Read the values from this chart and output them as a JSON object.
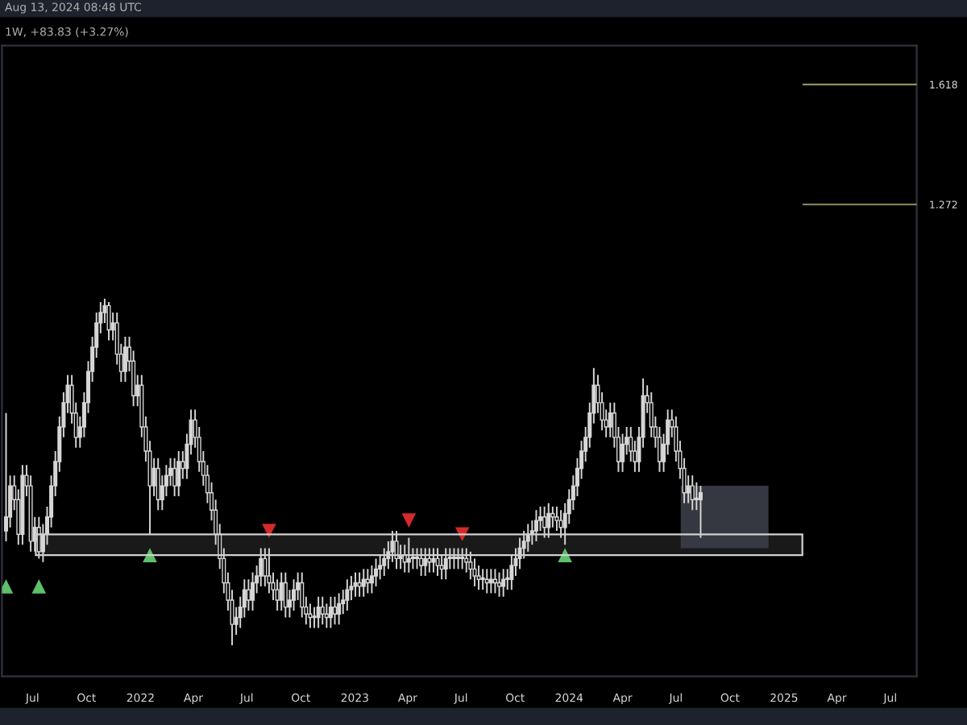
{
  "chart_data": {
    "type": "candlestick",
    "color": "#d6d6d6",
    "ylim": [
      -0.09,
      1.73
    ],
    "yticks": [
      1.272,
      1.618
    ],
    "x": [
      "2021-05-17",
      "2021-05-24",
      "2021-05-31",
      "2021-06-07",
      "2021-06-14",
      "2021-06-21",
      "2021-06-28",
      "2021-07-05",
      "2021-07-12",
      "2021-07-19",
      "2021-07-26",
      "2021-08-02",
      "2021-08-09",
      "2021-08-16",
      "2021-08-23",
      "2021-08-30",
      "2021-09-06",
      "2021-09-13",
      "2021-09-20",
      "2021-09-27",
      "2021-10-04",
      "2021-10-11",
      "2021-10-18",
      "2021-10-25",
      "2021-11-01",
      "2021-11-08",
      "2021-11-15",
      "2021-11-22",
      "2021-11-29",
      "2021-12-06",
      "2021-12-13",
      "2021-12-20",
      "2021-12-27",
      "2022-01-03",
      "2022-01-10",
      "2022-01-17",
      "2022-01-24",
      "2022-01-31",
      "2022-02-07",
      "2022-02-14",
      "2022-02-21",
      "2022-02-28",
      "2022-03-07",
      "2022-03-14",
      "2022-03-21",
      "2022-03-28",
      "2022-04-04",
      "2022-04-11",
      "2022-04-18",
      "2022-04-25",
      "2022-05-02",
      "2022-05-09",
      "2022-05-16",
      "2022-05-23",
      "2022-05-30",
      "2022-06-06",
      "2022-06-13",
      "2022-06-20",
      "2022-06-27",
      "2022-07-04",
      "2022-07-11",
      "2022-07-18",
      "2022-07-25",
      "2022-08-01",
      "2022-08-08",
      "2022-08-15",
      "2022-08-22",
      "2022-08-29",
      "2022-09-05",
      "2022-09-12",
      "2022-09-19",
      "2022-09-26",
      "2022-10-03",
      "2022-10-10",
      "2022-10-17",
      "2022-10-24",
      "2022-10-31",
      "2022-11-07",
      "2022-11-14",
      "2022-11-21",
      "2022-11-28",
      "2022-12-05",
      "2022-12-12",
      "2022-12-19",
      "2022-12-26",
      "2023-01-02",
      "2023-01-09",
      "2023-01-16",
      "2023-01-23",
      "2023-01-30",
      "2023-02-06",
      "2023-02-13",
      "2023-02-20",
      "2023-02-27",
      "2023-03-06",
      "2023-03-13",
      "2023-03-20",
      "2023-03-27",
      "2023-04-03",
      "2023-04-10",
      "2023-04-17",
      "2023-04-24",
      "2023-05-01",
      "2023-05-08",
      "2023-05-15",
      "2023-05-22",
      "2023-05-29",
      "2023-06-05",
      "2023-06-12",
      "2023-06-19",
      "2023-06-26",
      "2023-07-03",
      "2023-07-10",
      "2023-07-17",
      "2023-07-24",
      "2023-07-31",
      "2023-08-07",
      "2023-08-14",
      "2023-08-21",
      "2023-08-28",
      "2023-09-04",
      "2023-09-11",
      "2023-09-18",
      "2023-09-25",
      "2023-10-02",
      "2023-10-09",
      "2023-10-16",
      "2023-10-23",
      "2023-10-30",
      "2023-11-06",
      "2023-11-13",
      "2023-11-20",
      "2023-11-27",
      "2023-12-04",
      "2023-12-11",
      "2023-12-18",
      "2023-12-25",
      "2024-01-01",
      "2024-01-08",
      "2024-01-15",
      "2024-01-22",
      "2024-01-29",
      "2024-02-05",
      "2024-02-12",
      "2024-02-19",
      "2024-02-26",
      "2024-03-04",
      "2024-03-11",
      "2024-03-18",
      "2024-03-25",
      "2024-04-01",
      "2024-04-08",
      "2024-04-15",
      "2024-04-22",
      "2024-04-29",
      "2024-05-06",
      "2024-05-13",
      "2024-05-20",
      "2024-05-27",
      "2024-06-03",
      "2024-06-10",
      "2024-06-17",
      "2024-06-24",
      "2024-07-01",
      "2024-07-08",
      "2024-07-15",
      "2024-07-22",
      "2024-07-29",
      "2024-08-05",
      "2024-08-12"
    ],
    "ohlc": [
      [
        0.33,
        0.67,
        0.3,
        0.37
      ],
      [
        0.37,
        0.49,
        0.34,
        0.46
      ],
      [
        0.46,
        0.49,
        0.39,
        0.42
      ],
      [
        0.42,
        0.45,
        0.29,
        0.32
      ],
      [
        0.32,
        0.52,
        0.29,
        0.49
      ],
      [
        0.49,
        0.52,
        0.43,
        0.46
      ],
      [
        0.46,
        0.49,
        0.27,
        0.3
      ],
      [
        0.3,
        0.37,
        0.27,
        0.34
      ],
      [
        0.34,
        0.37,
        0.25,
        0.27
      ],
      [
        0.27,
        0.35,
        0.24,
        0.32
      ],
      [
        0.32,
        0.4,
        0.29,
        0.37
      ],
      [
        0.37,
        0.49,
        0.34,
        0.46
      ],
      [
        0.46,
        0.56,
        0.43,
        0.53
      ],
      [
        0.53,
        0.66,
        0.5,
        0.63
      ],
      [
        0.63,
        0.73,
        0.6,
        0.7
      ],
      [
        0.7,
        0.78,
        0.67,
        0.75
      ],
      [
        0.75,
        0.78,
        0.64,
        0.67
      ],
      [
        0.67,
        0.7,
        0.57,
        0.6
      ],
      [
        0.6,
        0.66,
        0.57,
        0.63
      ],
      [
        0.63,
        0.73,
        0.6,
        0.7
      ],
      [
        0.7,
        0.82,
        0.67,
        0.79
      ],
      [
        0.79,
        0.89,
        0.76,
        0.86
      ],
      [
        0.86,
        0.96,
        0.83,
        0.93
      ],
      [
        0.93,
        0.99,
        0.9,
        0.96
      ],
      [
        0.96,
        1.0,
        0.93,
        0.98
      ],
      [
        0.98,
        0.99,
        0.88,
        0.91
      ],
      [
        0.91,
        0.96,
        0.88,
        0.93
      ],
      [
        0.93,
        0.96,
        0.81,
        0.84
      ],
      [
        0.84,
        0.87,
        0.76,
        0.79
      ],
      [
        0.79,
        0.89,
        0.76,
        0.86
      ],
      [
        0.86,
        0.89,
        0.79,
        0.82
      ],
      [
        0.82,
        0.85,
        0.69,
        0.72
      ],
      [
        0.72,
        0.78,
        0.69,
        0.75
      ],
      [
        0.75,
        0.78,
        0.6,
        0.63
      ],
      [
        0.63,
        0.66,
        0.53,
        0.56
      ],
      [
        0.56,
        0.59,
        0.32,
        0.46
      ],
      [
        0.46,
        0.54,
        0.43,
        0.51
      ],
      [
        0.51,
        0.54,
        0.39,
        0.42
      ],
      [
        0.42,
        0.49,
        0.39,
        0.46
      ],
      [
        0.46,
        0.52,
        0.43,
        0.49
      ],
      [
        0.49,
        0.54,
        0.46,
        0.51
      ],
      [
        0.51,
        0.54,
        0.43,
        0.46
      ],
      [
        0.46,
        0.56,
        0.43,
        0.53
      ],
      [
        0.53,
        0.56,
        0.48,
        0.51
      ],
      [
        0.51,
        0.61,
        0.48,
        0.58
      ],
      [
        0.58,
        0.68,
        0.55,
        0.65
      ],
      [
        0.65,
        0.68,
        0.57,
        0.6
      ],
      [
        0.6,
        0.63,
        0.5,
        0.53
      ],
      [
        0.53,
        0.56,
        0.46,
        0.49
      ],
      [
        0.49,
        0.52,
        0.41,
        0.44
      ],
      [
        0.44,
        0.47,
        0.36,
        0.39
      ],
      [
        0.39,
        0.42,
        0.29,
        0.32
      ],
      [
        0.32,
        0.35,
        0.22,
        0.25
      ],
      [
        0.25,
        0.28,
        0.15,
        0.18
      ],
      [
        0.18,
        0.21,
        0.1,
        0.13
      ],
      [
        0.13,
        0.16,
        0.0,
        0.06
      ],
      [
        0.06,
        0.11,
        0.03,
        0.08
      ],
      [
        0.08,
        0.14,
        0.05,
        0.11
      ],
      [
        0.11,
        0.19,
        0.08,
        0.16
      ],
      [
        0.16,
        0.19,
        0.1,
        0.13
      ],
      [
        0.13,
        0.21,
        0.1,
        0.18
      ],
      [
        0.18,
        0.23,
        0.15,
        0.2
      ],
      [
        0.2,
        0.28,
        0.17,
        0.25
      ],
      [
        0.25,
        0.28,
        0.17,
        0.2
      ],
      [
        0.2,
        0.28,
        0.15,
        0.18
      ],
      [
        0.18,
        0.21,
        0.13,
        0.16
      ],
      [
        0.16,
        0.19,
        0.1,
        0.13
      ],
      [
        0.13,
        0.21,
        0.1,
        0.18
      ],
      [
        0.18,
        0.21,
        0.08,
        0.11
      ],
      [
        0.11,
        0.16,
        0.08,
        0.13
      ],
      [
        0.13,
        0.19,
        0.1,
        0.16
      ],
      [
        0.16,
        0.21,
        0.13,
        0.18
      ],
      [
        0.18,
        0.21,
        0.08,
        0.11
      ],
      [
        0.11,
        0.14,
        0.06,
        0.09
      ],
      [
        0.09,
        0.12,
        0.05,
        0.08
      ],
      [
        0.08,
        0.11,
        0.05,
        0.08
      ],
      [
        0.08,
        0.14,
        0.05,
        0.11
      ],
      [
        0.11,
        0.14,
        0.06,
        0.09
      ],
      [
        0.09,
        0.12,
        0.05,
        0.08
      ],
      [
        0.08,
        0.14,
        0.05,
        0.11
      ],
      [
        0.11,
        0.14,
        0.06,
        0.09
      ],
      [
        0.09,
        0.15,
        0.06,
        0.12
      ],
      [
        0.12,
        0.16,
        0.09,
        0.13
      ],
      [
        0.13,
        0.19,
        0.1,
        0.16
      ],
      [
        0.16,
        0.2,
        0.13,
        0.17
      ],
      [
        0.17,
        0.21,
        0.14,
        0.18
      ],
      [
        0.18,
        0.21,
        0.14,
        0.17
      ],
      [
        0.17,
        0.22,
        0.14,
        0.19
      ],
      [
        0.19,
        0.22,
        0.15,
        0.18
      ],
      [
        0.18,
        0.23,
        0.15,
        0.2
      ],
      [
        0.2,
        0.25,
        0.17,
        0.22
      ],
      [
        0.22,
        0.26,
        0.19,
        0.23
      ],
      [
        0.23,
        0.28,
        0.2,
        0.25
      ],
      [
        0.25,
        0.3,
        0.22,
        0.27
      ],
      [
        0.27,
        0.33,
        0.24,
        0.3
      ],
      [
        0.3,
        0.33,
        0.22,
        0.25
      ],
      [
        0.25,
        0.29,
        0.22,
        0.26
      ],
      [
        0.26,
        0.29,
        0.21,
        0.24
      ],
      [
        0.24,
        0.31,
        0.21,
        0.25
      ],
      [
        0.25,
        0.28,
        0.22,
        0.25
      ],
      [
        0.25,
        0.28,
        0.22,
        0.25
      ],
      [
        0.25,
        0.28,
        0.2,
        0.23
      ],
      [
        0.23,
        0.28,
        0.2,
        0.25
      ],
      [
        0.25,
        0.28,
        0.21,
        0.24
      ],
      [
        0.24,
        0.28,
        0.21,
        0.25
      ],
      [
        0.25,
        0.28,
        0.2,
        0.23
      ],
      [
        0.23,
        0.26,
        0.19,
        0.22
      ],
      [
        0.22,
        0.28,
        0.19,
        0.25
      ],
      [
        0.25,
        0.28,
        0.22,
        0.25
      ],
      [
        0.25,
        0.28,
        0.22,
        0.25
      ],
      [
        0.25,
        0.28,
        0.22,
        0.25
      ],
      [
        0.25,
        0.28,
        0.22,
        0.25
      ],
      [
        0.25,
        0.28,
        0.21,
        0.24
      ],
      [
        0.24,
        0.27,
        0.19,
        0.22
      ],
      [
        0.22,
        0.25,
        0.17,
        0.2
      ],
      [
        0.2,
        0.23,
        0.16,
        0.19
      ],
      [
        0.19,
        0.22,
        0.16,
        0.19
      ],
      [
        0.19,
        0.22,
        0.15,
        0.18
      ],
      [
        0.18,
        0.22,
        0.15,
        0.19
      ],
      [
        0.19,
        0.22,
        0.15,
        0.18
      ],
      [
        0.18,
        0.21,
        0.14,
        0.17
      ],
      [
        0.17,
        0.22,
        0.14,
        0.19
      ],
      [
        0.19,
        0.22,
        0.16,
        0.19
      ],
      [
        0.19,
        0.26,
        0.16,
        0.23
      ],
      [
        0.23,
        0.28,
        0.2,
        0.25
      ],
      [
        0.25,
        0.31,
        0.22,
        0.28
      ],
      [
        0.28,
        0.33,
        0.25,
        0.3
      ],
      [
        0.3,
        0.35,
        0.27,
        0.32
      ],
      [
        0.32,
        0.36,
        0.29,
        0.33
      ],
      [
        0.33,
        0.39,
        0.3,
        0.36
      ],
      [
        0.36,
        0.4,
        0.33,
        0.37
      ],
      [
        0.37,
        0.4,
        0.31,
        0.34
      ],
      [
        0.34,
        0.41,
        0.31,
        0.38
      ],
      [
        0.38,
        0.4,
        0.34,
        0.37
      ],
      [
        0.37,
        0.4,
        0.33,
        0.36
      ],
      [
        0.36,
        0.39,
        0.31,
        0.34
      ],
      [
        0.34,
        0.41,
        0.29,
        0.38
      ],
      [
        0.38,
        0.45,
        0.35,
        0.42
      ],
      [
        0.42,
        0.49,
        0.39,
        0.46
      ],
      [
        0.46,
        0.54,
        0.43,
        0.51
      ],
      [
        0.51,
        0.59,
        0.48,
        0.56
      ],
      [
        0.56,
        0.63,
        0.53,
        0.6
      ],
      [
        0.6,
        0.7,
        0.57,
        0.67
      ],
      [
        0.67,
        0.8,
        0.64,
        0.75
      ],
      [
        0.75,
        0.78,
        0.67,
        0.7
      ],
      [
        0.7,
        0.73,
        0.62,
        0.65
      ],
      [
        0.65,
        0.68,
        0.6,
        0.63
      ],
      [
        0.63,
        0.7,
        0.6,
        0.67
      ],
      [
        0.67,
        0.7,
        0.57,
        0.6
      ],
      [
        0.6,
        0.63,
        0.5,
        0.53
      ],
      [
        0.53,
        0.61,
        0.5,
        0.58
      ],
      [
        0.58,
        0.63,
        0.55,
        0.6
      ],
      [
        0.6,
        0.63,
        0.53,
        0.56
      ],
      [
        0.56,
        0.59,
        0.5,
        0.53
      ],
      [
        0.53,
        0.63,
        0.5,
        0.6
      ],
      [
        0.6,
        0.77,
        0.57,
        0.72
      ],
      [
        0.72,
        0.75,
        0.67,
        0.7
      ],
      [
        0.7,
        0.73,
        0.6,
        0.63
      ],
      [
        0.63,
        0.66,
        0.57,
        0.6
      ],
      [
        0.6,
        0.63,
        0.5,
        0.53
      ],
      [
        0.53,
        0.61,
        0.5,
        0.58
      ],
      [
        0.58,
        0.68,
        0.55,
        0.65
      ],
      [
        0.65,
        0.68,
        0.6,
        0.63
      ],
      [
        0.63,
        0.66,
        0.53,
        0.56
      ],
      [
        0.56,
        0.59,
        0.48,
        0.51
      ],
      [
        0.51,
        0.54,
        0.41,
        0.44
      ],
      [
        0.44,
        0.49,
        0.41,
        0.46
      ],
      [
        0.46,
        0.49,
        0.39,
        0.42
      ],
      [
        0.42,
        0.47,
        0.39,
        0.42
      ],
      [
        0.42,
        0.46,
        0.31,
        0.44
      ]
    ],
    "series": [
      {
        "type": "scatter",
        "marker": "triangle",
        "color": "#5fbf6a",
        "x": [
          "2021-05-17",
          "2021-07-12",
          "2022-01-17",
          "2023-12-25"
        ],
        "values": [
          0.17,
          0.17,
          0.26,
          0.26
        ]
      },
      {
        "type": "scatter",
        "marker": "triangle_down",
        "color": "#d42a2a",
        "x": [
          "2022-08-08",
          "2023-04-03",
          "2023-07-03"
        ],
        "values": [
          0.33,
          0.36,
          0.32
        ]
      }
    ],
    "xlim": [
      "2021-05-10",
      "2025-08-15"
    ],
    "xticks": [
      {
        "value": "2021-07-01",
        "label": "Jul"
      },
      {
        "value": "2021-10-01",
        "label": "Oct"
      },
      {
        "value": "2022-01-01",
        "label": "2022"
      },
      {
        "value": "2022-04-01",
        "label": "Apr"
      },
      {
        "value": "2022-07-01",
        "label": "Jul"
      },
      {
        "value": "2022-10-01",
        "label": "Oct"
      },
      {
        "value": "2023-01-01",
        "label": "2023"
      },
      {
        "value": "2023-04-01",
        "label": "Apr"
      },
      {
        "value": "2023-07-01",
        "label": "Jul"
      },
      {
        "value": "2023-10-01",
        "label": "Oct"
      },
      {
        "value": "2024-01-01",
        "label": "2024"
      },
      {
        "value": "2024-04-01",
        "label": "Apr"
      },
      {
        "value": "2024-07-01",
        "label": "Jul"
      },
      {
        "value": "2024-10-01",
        "label": "Oct"
      },
      {
        "value": "2025-01-01",
        "label": "2025"
      },
      {
        "value": "2025-04-01",
        "label": "Apr"
      },
      {
        "value": "2025-07-01",
        "label": "Jul"
      }
    ],
    "grid": false,
    "legend": false,
    "ref_lines": [
      {
        "axis": "y",
        "value": 1.618,
        "color": "#8f8f5c"
      },
      {
        "axis": "y",
        "value": 1.272,
        "color": "#8f8f5c"
      }
    ],
    "bands": [
      {
        "axis": "y",
        "from": 0.26,
        "to": 0.32,
        "color": "#d0d0d0"
      },
      {
        "axis": "y",
        "from": 0.28,
        "to": 0.46,
        "color": "#3b3e47"
      }
    ],
    "annotations": [
      "Aug 13, 2024 08:48 UTC",
      "1W, +83.83 (+3.27%)"
    ]
  }
}
